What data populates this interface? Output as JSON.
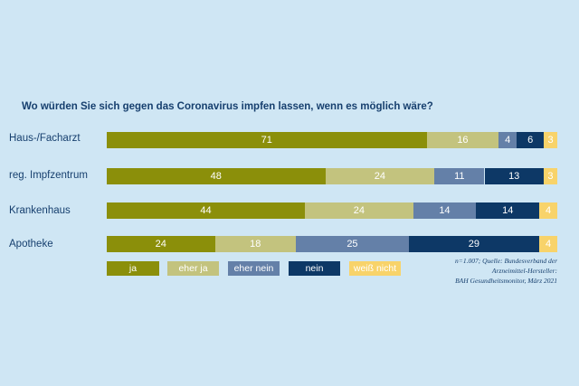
{
  "colors": {
    "background": "#cfe6f4",
    "ja": "#8b8f0a",
    "eher_ja": "#c3c37e",
    "eher_nein": "#6480a8",
    "nein": "#0d3866",
    "weiss_nicht": "#f8d36a",
    "text": "#163f6e"
  },
  "chart_data": {
    "type": "bar",
    "orientation": "horizontal",
    "stacked": true,
    "title": "Wo würden Sie sich gegen das Coronavirus impfen lassen, wenn es möglich wäre?",
    "categories": [
      "Haus-/Facharzt",
      "reg. Impfzentrum",
      "Krankenhaus",
      "Apotheke"
    ],
    "series": [
      {
        "name": "ja",
        "values": [
          71,
          48,
          44,
          24
        ]
      },
      {
        "name": "eher ja",
        "values": [
          16,
          24,
          24,
          18
        ]
      },
      {
        "name": "eher nein",
        "values": [
          4,
          11,
          14,
          25
        ]
      },
      {
        "name": "nein",
        "values": [
          6,
          13,
          14,
          29
        ]
      },
      {
        "name": "weiß nicht",
        "values": [
          3,
          3,
          4,
          4
        ]
      }
    ],
    "legend_position": "bottom-left",
    "source_lines": [
      "n=1.007; Quelle: Bundesverband der",
      "Arzneimittel-Hersteller:",
      "BAH Gesundheitsmonitor, März 2021"
    ]
  }
}
